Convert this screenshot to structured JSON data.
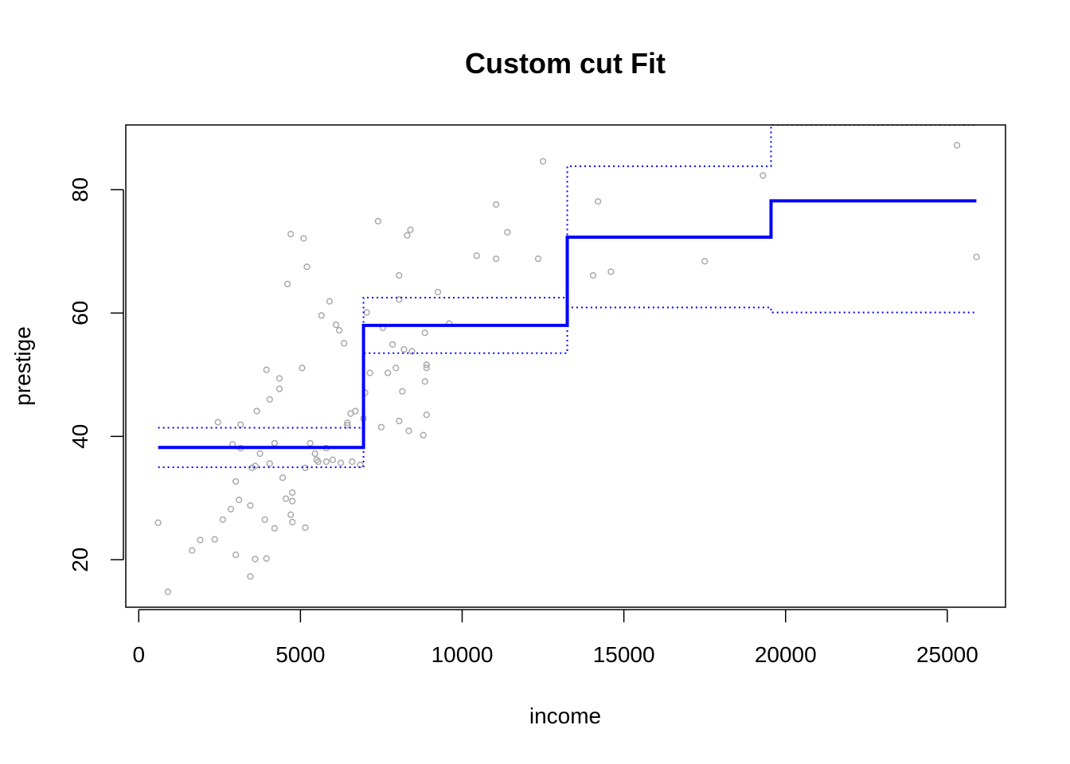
{
  "chart_data": {
    "type": "scatter",
    "title": "Custom cut Fit",
    "xlabel": "income",
    "ylabel": "prestige",
    "xlim": [
      -400,
      26800
    ],
    "ylim": [
      12.3,
      90.5
    ],
    "xticks": [
      0,
      5000,
      10000,
      15000,
      20000,
      25000
    ],
    "yticks": [
      20,
      40,
      60,
      80
    ],
    "grid": false,
    "colors": {
      "points": "#aaaaaa",
      "fit": "#0000ff",
      "band": "#0000ff",
      "frame": "#000000"
    },
    "points": [
      [
        600,
        26
      ],
      [
        900,
        14.8
      ],
      [
        1650,
        21.5
      ],
      [
        1900,
        23.2
      ],
      [
        2350,
        23.3
      ],
      [
        2450,
        42.3
      ],
      [
        2600,
        26.5
      ],
      [
        2850,
        28.2
      ],
      [
        2900,
        38.7
      ],
      [
        3000,
        20.8
      ],
      [
        3000,
        32.7
      ],
      [
        3100,
        29.7
      ],
      [
        3150,
        41.9
      ],
      [
        3150,
        38.1
      ],
      [
        3450,
        17.3
      ],
      [
        3450,
        28.8
      ],
      [
        3500,
        34.9
      ],
      [
        3600,
        35.2
      ],
      [
        3600,
        20.1
      ],
      [
        3650,
        44.1
      ],
      [
        3750,
        37.2
      ],
      [
        3900,
        26.5
      ],
      [
        3950,
        50.8
      ],
      [
        3950,
        20.2
      ],
      [
        4050,
        46
      ],
      [
        4050,
        35.6
      ],
      [
        4200,
        38.9
      ],
      [
        4200,
        25.1
      ],
      [
        4350,
        49.4
      ],
      [
        4350,
        47.7
      ],
      [
        4450,
        33.3
      ],
      [
        4550,
        29.9
      ],
      [
        4600,
        64.7
      ],
      [
        4700,
        72.8
      ],
      [
        4700,
        27.3
      ],
      [
        4750,
        29.5
      ],
      [
        4750,
        26.1
      ],
      [
        4750,
        30.9
      ],
      [
        5050,
        51.1
      ],
      [
        5100,
        72.1
      ],
      [
        5150,
        25.2
      ],
      [
        5150,
        34.9
      ],
      [
        5200,
        67.5
      ],
      [
        5300,
        38.9
      ],
      [
        5450,
        37.2
      ],
      [
        5500,
        36.2
      ],
      [
        5550,
        35.9
      ],
      [
        5650,
        59.6
      ],
      [
        5800,
        38.1
      ],
      [
        5800,
        35.9
      ],
      [
        5900,
        61.9
      ],
      [
        6000,
        36.2
      ],
      [
        6100,
        58.1
      ],
      [
        6200,
        57.2
      ],
      [
        6250,
        35.7
      ],
      [
        6350,
        55.1
      ],
      [
        6450,
        42.2
      ],
      [
        6450,
        41.8
      ],
      [
        6550,
        43.7
      ],
      [
        6600,
        35.9
      ],
      [
        6700,
        44.1
      ],
      [
        6850,
        35.4
      ],
      [
        6950,
        42.9
      ],
      [
        7000,
        47.1
      ],
      [
        7050,
        60.1
      ],
      [
        7150,
        50.3
      ],
      [
        7400,
        74.9
      ],
      [
        7500,
        41.5
      ],
      [
        7550,
        57.6
      ],
      [
        7700,
        50.3
      ],
      [
        7850,
        54.9
      ],
      [
        7950,
        51.1
      ],
      [
        8050,
        62.2
      ],
      [
        8050,
        66.1
      ],
      [
        8050,
        42.5
      ],
      [
        8150,
        47.3
      ],
      [
        8200,
        54.1
      ],
      [
        8300,
        72.6
      ],
      [
        8350,
        40.9
      ],
      [
        8400,
        73.5
      ],
      [
        8450,
        53.8
      ],
      [
        8800,
        40.2
      ],
      [
        8850,
        56.8
      ],
      [
        8850,
        48.9
      ],
      [
        8900,
        51.1
      ],
      [
        8900,
        51.6
      ],
      [
        8900,
        43.5
      ],
      [
        9250,
        63.4
      ],
      [
        9600,
        58.3
      ],
      [
        10450,
        69.3
      ],
      [
        11050,
        68.8
      ],
      [
        11050,
        77.6
      ],
      [
        11400,
        73.1
      ],
      [
        12350,
        68.8
      ],
      [
        12500,
        84.6
      ],
      [
        14050,
        66.1
      ],
      [
        14200,
        78.1
      ],
      [
        14600,
        66.7
      ],
      [
        17500,
        68.4
      ],
      [
        19300,
        82.3
      ],
      [
        25300,
        87.2
      ],
      [
        25900,
        69.1
      ]
    ],
    "fit_steps": [
      {
        "x0": 600,
        "x1": 6950,
        "fit": 38.2,
        "lower": 35,
        "upper": 41.4
      },
      {
        "x0": 6950,
        "x1": 13250,
        "fit": 58,
        "lower": 53.5,
        "upper": 62.5
      },
      {
        "x0": 13250,
        "x1": 19550,
        "fit": 72.3,
        "lower": 60.9,
        "upper": 83.8
      },
      {
        "x0": 19550,
        "x1": 25900,
        "fit": 78.2,
        "lower": 60.1,
        "upper": 96.3
      }
    ]
  }
}
